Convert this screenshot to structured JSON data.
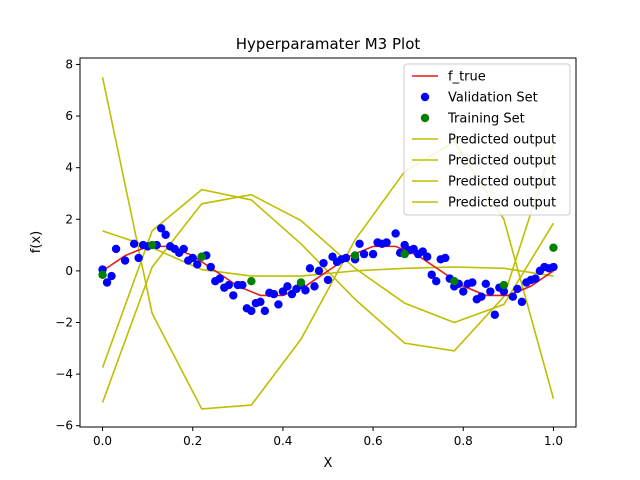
{
  "chart_data": {
    "type": "line",
    "title": "Hyperparamater M3 Plot",
    "xlabel": "X",
    "ylabel": "f(x)",
    "xlim": [
      -0.05,
      1.05
    ],
    "ylim": [
      -6.05,
      8.25
    ],
    "xticks": [
      0.0,
      0.2,
      0.4,
      0.6,
      0.8,
      1.0
    ],
    "xtick_labels": [
      "0.0",
      "0.2",
      "0.4",
      "0.6",
      "0.8",
      "1.0"
    ],
    "yticks": [
      -6,
      -4,
      -2,
      0,
      2,
      4,
      6,
      8
    ],
    "ytick_labels": [
      "−6",
      "−4",
      "−2",
      "0",
      "2",
      "4",
      "6",
      "8"
    ],
    "grid": false,
    "legend_position": "top-right",
    "colors": {
      "f_true": "#e41a1c",
      "validation": "#0000ff",
      "training": "#008000",
      "predicted": "#bfbf00"
    },
    "series": [
      {
        "name": "f_true",
        "kind": "line",
        "color": "#e41a1c",
        "x": [
          0.0,
          0.05,
          0.1,
          0.15,
          0.2,
          0.25,
          0.3,
          0.35,
          0.4,
          0.45,
          0.5,
          0.55,
          0.6,
          0.65,
          0.7,
          0.75,
          0.8,
          0.85,
          0.9,
          0.95,
          1.0
        ],
        "y": [
          0.0,
          0.59,
          0.95,
          0.95,
          0.59,
          0.0,
          -0.59,
          -0.95,
          -0.95,
          -0.59,
          0.0,
          0.59,
          0.95,
          0.95,
          0.59,
          0.0,
          -0.59,
          -0.95,
          -0.95,
          -0.59,
          0.0
        ]
      },
      {
        "name": "Validation Set",
        "kind": "scatter",
        "color": "#0000ff",
        "x": [
          0.0,
          0.01,
          0.02,
          0.03,
          0.05,
          0.07,
          0.08,
          0.09,
          0.1,
          0.12,
          0.13,
          0.14,
          0.15,
          0.16,
          0.17,
          0.18,
          0.19,
          0.2,
          0.21,
          0.22,
          0.23,
          0.24,
          0.25,
          0.26,
          0.27,
          0.28,
          0.29,
          0.3,
          0.31,
          0.32,
          0.33,
          0.34,
          0.35,
          0.36,
          0.37,
          0.38,
          0.39,
          0.4,
          0.41,
          0.42,
          0.43,
          0.44,
          0.45,
          0.46,
          0.47,
          0.48,
          0.49,
          0.5,
          0.51,
          0.52,
          0.53,
          0.54,
          0.56,
          0.57,
          0.58,
          0.6,
          0.61,
          0.62,
          0.63,
          0.65,
          0.66,
          0.67,
          0.68,
          0.69,
          0.7,
          0.71,
          0.72,
          0.73,
          0.74,
          0.75,
          0.76,
          0.77,
          0.78,
          0.79,
          0.8,
          0.81,
          0.82,
          0.83,
          0.84,
          0.85,
          0.86,
          0.87,
          0.88,
          0.89,
          0.91,
          0.92,
          0.93,
          0.94,
          0.95,
          0.96,
          0.97,
          0.98,
          0.99,
          1.0
        ],
        "y": [
          0.05,
          -0.45,
          -0.2,
          0.85,
          0.4,
          1.05,
          0.5,
          1.0,
          0.95,
          1.0,
          1.65,
          1.4,
          0.95,
          0.85,
          0.7,
          0.85,
          0.4,
          0.5,
          0.25,
          0.55,
          0.6,
          0.15,
          -0.4,
          -0.3,
          -0.65,
          -0.55,
          -0.95,
          -0.55,
          -0.55,
          -1.45,
          -1.55,
          -1.25,
          -1.2,
          -1.55,
          -0.85,
          -0.9,
          -1.3,
          -0.8,
          -0.6,
          -0.9,
          -0.7,
          -0.55,
          -0.75,
          0.1,
          -0.6,
          0.0,
          0.3,
          -0.35,
          0.55,
          0.35,
          0.45,
          0.5,
          0.45,
          1.05,
          0.65,
          0.65,
          1.1,
          1.05,
          1.1,
          1.45,
          0.7,
          1.0,
          0.8,
          0.85,
          0.65,
          0.75,
          0.55,
          -0.15,
          -0.4,
          0.45,
          0.5,
          -0.3,
          -0.6,
          -0.5,
          -0.8,
          -0.5,
          -0.45,
          -1.1,
          -1.0,
          -0.5,
          -0.8,
          -1.7,
          -0.65,
          -0.8,
          -1.0,
          -0.7,
          -1.2,
          -0.45,
          -0.35,
          -0.3,
          0.0,
          0.15,
          0.1,
          0.15
        ]
      },
      {
        "name": "Training Set",
        "kind": "scatter",
        "color": "#008000",
        "x": [
          0.0,
          0.11,
          0.22,
          0.33,
          0.44,
          0.56,
          0.67,
          0.78,
          0.89,
          1.0
        ],
        "y": [
          -0.15,
          1.0,
          0.55,
          -0.4,
          -0.45,
          0.6,
          0.65,
          -0.4,
          -0.55,
          0.9
        ]
      },
      {
        "name": "Predicted output",
        "kind": "line",
        "color": "#bfbf00",
        "x": [
          0.0,
          0.11,
          0.22,
          0.33,
          0.44,
          0.56,
          0.67,
          0.78,
          0.89,
          1.0
        ],
        "y": [
          -5.1,
          0.15,
          2.6,
          2.95,
          1.95,
          0.1,
          -1.25,
          -2.0,
          -1.3,
          1.85
        ]
      },
      {
        "name": "Predicted output",
        "kind": "line",
        "color": "#bfbf00",
        "x": [
          0.0,
          0.11,
          0.22,
          0.33,
          0.44,
          0.56,
          0.67,
          0.78,
          0.89,
          1.0
        ],
        "y": [
          1.55,
          0.9,
          0.05,
          -0.2,
          -0.2,
          0.0,
          0.1,
          0.15,
          0.1,
          -0.2
        ]
      },
      {
        "name": "Predicted output",
        "kind": "line",
        "color": "#bfbf00",
        "x": [
          0.0,
          0.11,
          0.22,
          0.33,
          0.44,
          0.56,
          0.67,
          0.78,
          0.89,
          1.0
        ],
        "y": [
          7.5,
          -1.65,
          -5.35,
          -5.2,
          -2.65,
          1.2,
          3.85,
          5.0,
          2.0,
          -4.95
        ]
      },
      {
        "name": "Predicted output",
        "kind": "line",
        "color": "#bfbf00",
        "x": [
          0.0,
          0.11,
          0.22,
          0.33,
          0.44,
          0.56,
          0.67,
          0.78,
          0.89,
          1.0
        ],
        "y": [
          -3.75,
          1.55,
          3.15,
          2.75,
          1.05,
          -1.1,
          -2.8,
          -3.1,
          -1.0,
          4.95
        ]
      }
    ],
    "legend": [
      {
        "label": "f_true",
        "kind": "line",
        "color": "#e41a1c"
      },
      {
        "label": "Validation Set",
        "kind": "marker",
        "color": "#0000ff"
      },
      {
        "label": "Training Set",
        "kind": "marker",
        "color": "#008000"
      },
      {
        "label": "Predicted output",
        "kind": "line",
        "color": "#bfbf00"
      },
      {
        "label": "Predicted output",
        "kind": "line",
        "color": "#bfbf00"
      },
      {
        "label": "Predicted output",
        "kind": "line",
        "color": "#bfbf00"
      },
      {
        "label": "Predicted output",
        "kind": "line",
        "color": "#bfbf00"
      }
    ]
  }
}
